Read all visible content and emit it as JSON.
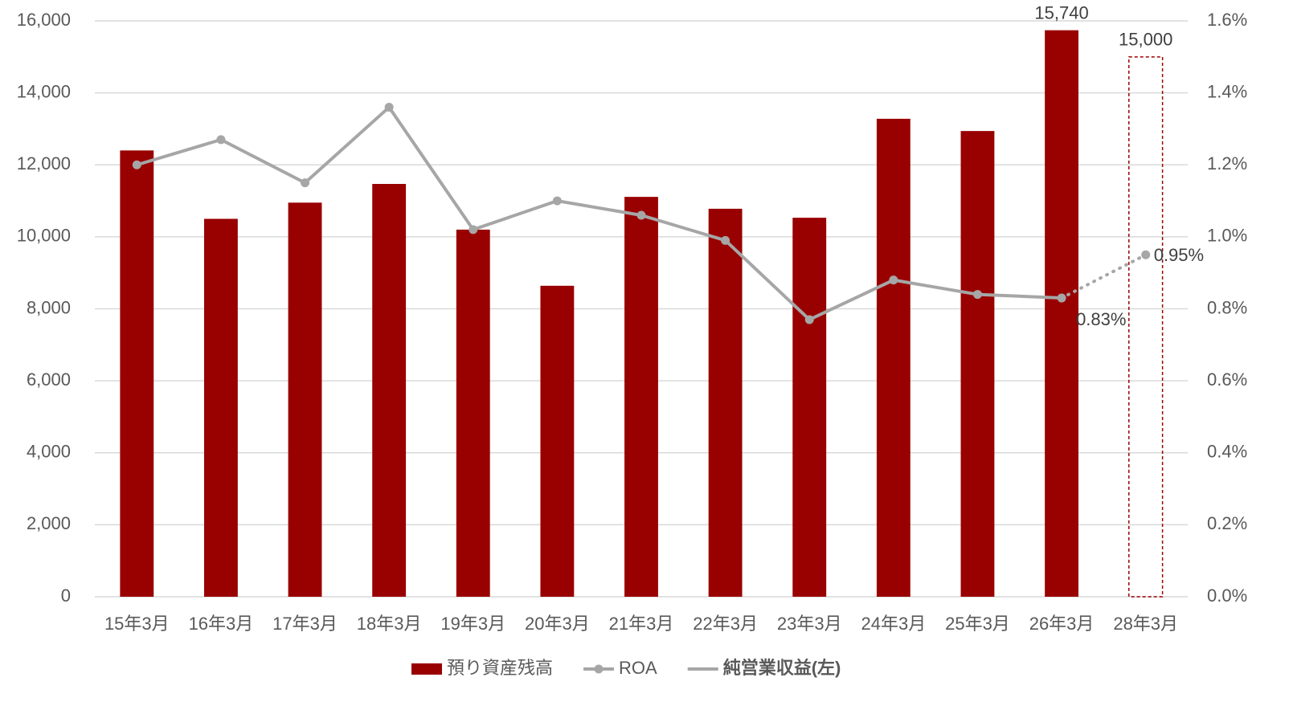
{
  "chart_data": {
    "type": "combo",
    "categories": [
      "15年3月",
      "16年3月",
      "17年3月",
      "18年3月",
      "19年3月",
      "20年3月",
      "21年3月",
      "22年3月",
      "23年3月",
      "24年3月",
      "25年3月",
      "26年3月",
      "28年3月"
    ],
    "ylim": [
      0,
      16000
    ],
    "yticks": [
      0,
      {
        "value": 2000,
        "label": "2,000"
      },
      {
        "value": 4000,
        "label": "4,000"
      },
      {
        "value": 6000,
        "label": "6,000"
      },
      {
        "value": 8000,
        "label": "8,000"
      },
      {
        "value": 10000,
        "label": "10,000"
      },
      {
        "value": 12000,
        "label": "12,000"
      },
      {
        "value": 14000,
        "label": "14,000"
      },
      {
        "value": 16000,
        "label": "16,000"
      }
    ],
    "y2lim": [
      0,
      1.6
    ],
    "y2ticks": [
      {
        "value": 0,
        "label": "0.0%"
      },
      {
        "value": 0.2,
        "label": "0.2%"
      },
      {
        "value": 0.4,
        "label": "0.4%"
      },
      {
        "value": 0.6,
        "label": "0.6%"
      },
      {
        "value": 0.8,
        "label": "0.8%"
      },
      {
        "value": 1.0,
        "label": "1.0%"
      },
      {
        "value": 1.2,
        "label": "1.2%"
      },
      {
        "value": 1.4,
        "label": "1.4%"
      },
      {
        "value": 1.6,
        "label": "1.6%"
      }
    ],
    "grid": true,
    "series": [
      {
        "name": "預り資産残高",
        "type": "bar",
        "color": "#990000",
        "values": [
          12400,
          10500,
          10950,
          11470,
          10200,
          8640,
          11110,
          10780,
          10530,
          13280,
          12940,
          15740,
          15000
        ],
        "value_labels": [
          null,
          null,
          null,
          null,
          null,
          null,
          null,
          null,
          null,
          null,
          null,
          "15,740",
          "15,000"
        ],
        "outline_indices": [
          12
        ]
      },
      {
        "name": "ROA",
        "type": "line",
        "axis": "y2",
        "color": "#a6a6a6",
        "marker": true,
        "values": [
          1.2,
          1.27,
          1.15,
          1.36,
          1.02,
          1.1,
          1.06,
          0.99,
          0.77,
          0.88,
          0.84,
          0.83,
          0.95
        ],
        "value_labels": [
          null,
          null,
          null,
          null,
          null,
          null,
          null,
          null,
          null,
          null,
          null,
          "0.83%",
          "0.95%"
        ],
        "dotted_last_segment": true
      }
    ],
    "extra_legend": [
      {
        "name": "純営業収益(左)",
        "color": "#a6a6a6",
        "marker": false
      }
    ]
  }
}
